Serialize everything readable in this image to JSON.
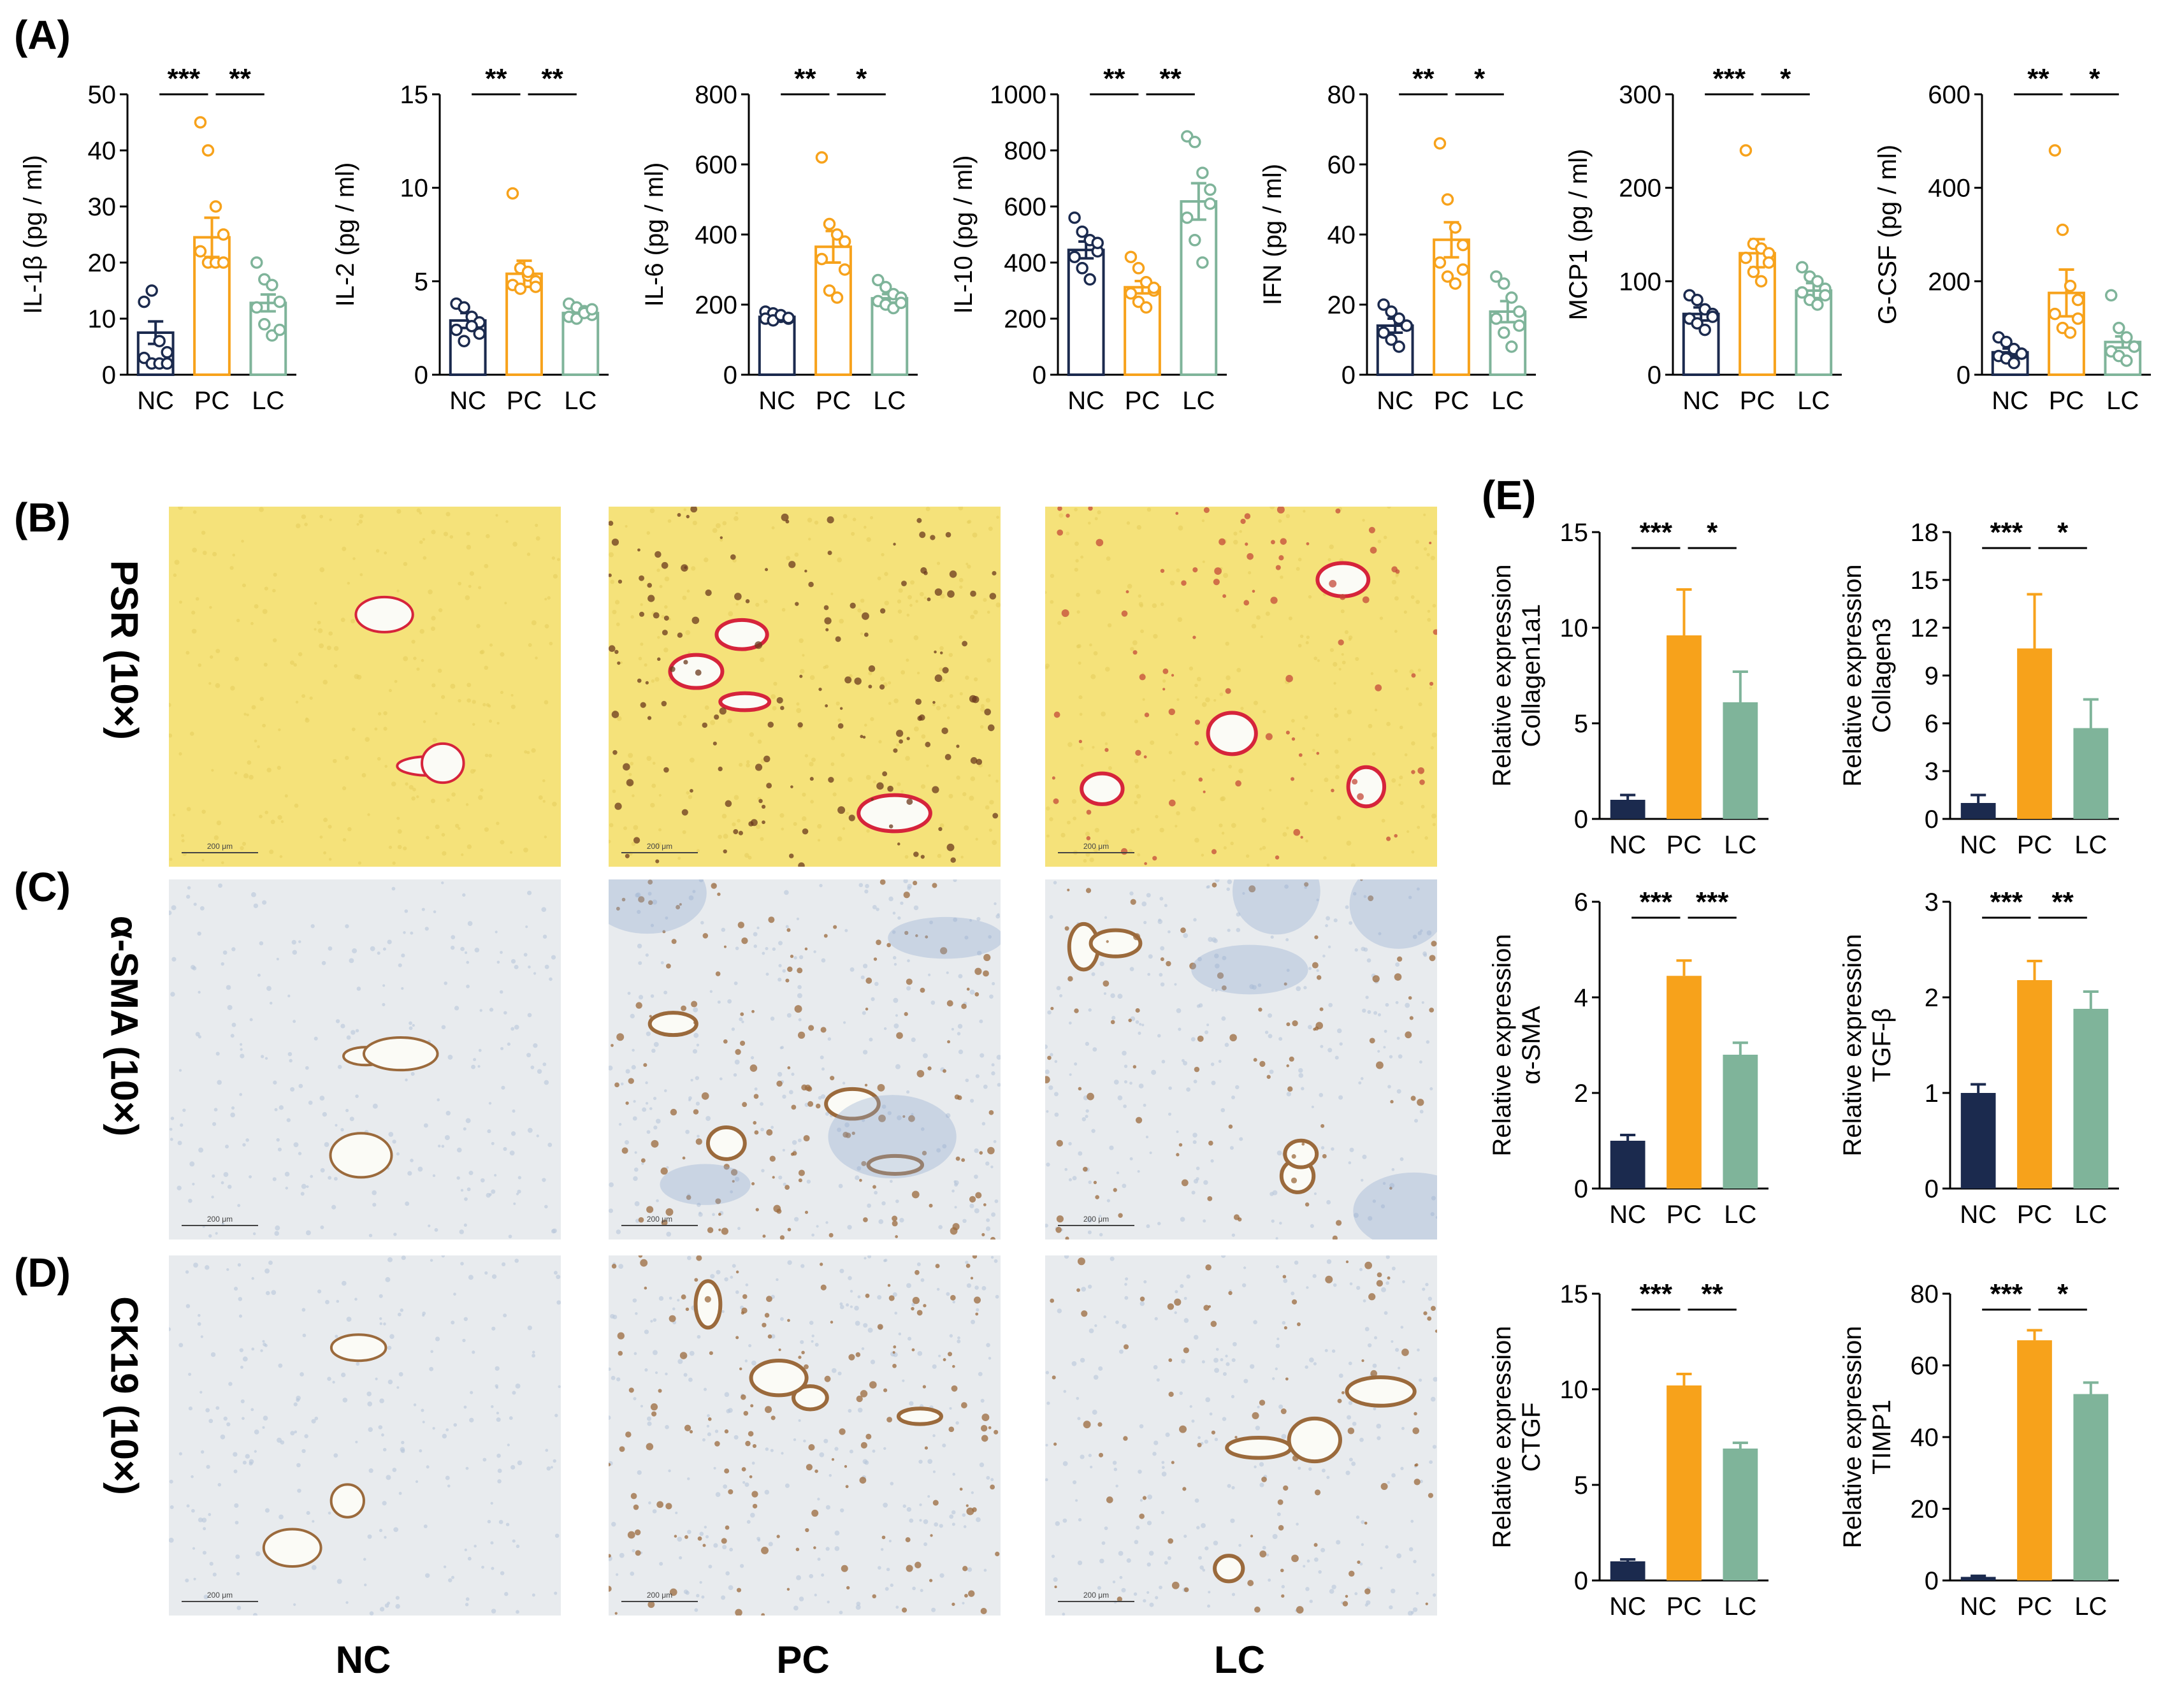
{
  "colors": {
    "NC": "#1b2a4e",
    "PC": "#f7a21b",
    "LC": "#7fb49a",
    "psr_bg": "#f5e27a",
    "ihc_bg": "#e8ebee",
    "stain_brown": "#9b6a3c",
    "psr_red": "#d6243b"
  },
  "panels": {
    "A": "(A)",
    "B": "(B)",
    "C": "(C)",
    "D": "(D)",
    "E": "(E)"
  },
  "stains": {
    "B": "PSR (10×)",
    "C": "α-SMA (10×)",
    "D": "CK19 (10×)"
  },
  "groups": [
    "NC",
    "PC",
    "LC"
  ],
  "micrographs": {
    "scale_bar": "200 μm",
    "columns": [
      "NC",
      "PC",
      "LC"
    ],
    "rows": [
      "PSR (10×)",
      "α-SMA (10×)",
      "CK19 (10×)"
    ]
  },
  "chart_data": [
    {
      "type": "bar",
      "panel": "A",
      "ylabel": "IL-1β (pg / ml)",
      "categories": [
        "NC",
        "PC",
        "LC"
      ],
      "ylim": [
        0,
        50
      ],
      "yticks": [
        0,
        10,
        20,
        30,
        40,
        50
      ],
      "means": [
        7.5,
        24.5,
        12.8
      ],
      "errors": [
        2.0,
        3.5,
        1.5
      ],
      "points": [
        [
          13,
          15,
          6,
          4,
          3,
          2,
          2,
          2
        ],
        [
          45,
          40,
          30,
          25,
          22,
          20,
          20,
          20
        ],
        [
          20,
          17,
          16,
          13,
          12,
          9,
          7,
          8
        ]
      ],
      "significance": [
        {
          "from": 0,
          "to": 1,
          "label": "***"
        },
        {
          "from": 1,
          "to": 2,
          "label": "**"
        }
      ]
    },
    {
      "type": "bar",
      "panel": "A",
      "ylabel": "IL-2 (pg / ml)",
      "categories": [
        "NC",
        "PC",
        "LC"
      ],
      "ylim": [
        0,
        15
      ],
      "yticks": [
        0,
        5,
        10,
        15
      ],
      "means": [
        2.9,
        5.4,
        3.3
      ],
      "errors": [
        0.4,
        0.7,
        0.2
      ],
      "points": [
        [
          3.8,
          3.6,
          3.1,
          2.8,
          2.4,
          1.8,
          2.6,
          2.2
        ],
        [
          9.7,
          5.7,
          5.3,
          5.0,
          4.8,
          4.6,
          5.5,
          4.7
        ],
        [
          3.8,
          3.6,
          3.4,
          3.2,
          3.1,
          3.0,
          3.3,
          3.5
        ]
      ],
      "significance": [
        {
          "from": 0,
          "to": 1,
          "label": "**"
        },
        {
          "from": 1,
          "to": 2,
          "label": "**"
        }
      ]
    },
    {
      "type": "bar",
      "panel": "A",
      "ylabel": "IL-6 (pg / ml)",
      "categories": [
        "NC",
        "PC",
        "LC"
      ],
      "ylim": [
        0,
        800
      ],
      "yticks": [
        0,
        200,
        400,
        600,
        800
      ],
      "means": [
        165,
        365,
        218
      ],
      "errors": [
        8,
        45,
        12
      ],
      "points": [
        [
          180,
          175,
          165,
          160,
          160,
          155,
          170,
          162
        ],
        [
          620,
          430,
          400,
          380,
          330,
          240,
          220,
          300
        ],
        [
          270,
          250,
          230,
          220,
          210,
          200,
          190,
          205
        ]
      ],
      "significance": [
        {
          "from": 0,
          "to": 1,
          "label": "**"
        },
        {
          "from": 1,
          "to": 2,
          "label": "*"
        }
      ]
    },
    {
      "type": "bar",
      "panel": "A",
      "ylabel": "IL-10 (pg / ml)",
      "categories": [
        "NC",
        "PC",
        "LC"
      ],
      "ylim": [
        0,
        1000
      ],
      "yticks": [
        0,
        200,
        400,
        600,
        800,
        1000
      ],
      "means": [
        445,
        312,
        618
      ],
      "errors": [
        30,
        22,
        65
      ],
      "points": [
        [
          560,
          510,
          480,
          440,
          420,
          380,
          340,
          470
        ],
        [
          420,
          380,
          330,
          300,
          290,
          260,
          240,
          310
        ],
        [
          850,
          830,
          720,
          660,
          560,
          480,
          400,
          610
        ]
      ],
      "significance": [
        {
          "from": 0,
          "to": 1,
          "label": "**"
        },
        {
          "from": 1,
          "to": 2,
          "label": "**"
        }
      ]
    },
    {
      "type": "bar",
      "panel": "A",
      "ylabel": "IFN (pg / ml)",
      "categories": [
        "NC",
        "PC",
        "LC"
      ],
      "ylim": [
        0,
        80
      ],
      "yticks": [
        0,
        20,
        40,
        60,
        80
      ],
      "means": [
        14,
        38.5,
        18
      ],
      "errors": [
        2,
        5,
        3
      ],
      "points": [
        [
          20,
          18,
          16,
          14,
          12,
          10,
          8,
          14
        ],
        [
          66,
          50,
          42,
          37,
          32,
          28,
          26,
          30
        ],
        [
          28,
          26,
          22,
          18,
          16,
          12,
          8,
          14
        ]
      ],
      "significance": [
        {
          "from": 0,
          "to": 1,
          "label": "**"
        },
        {
          "from": 1,
          "to": 2,
          "label": "*"
        }
      ]
    },
    {
      "type": "bar",
      "panel": "A",
      "ylabel": "MCP1 (pg / ml)",
      "categories": [
        "NC",
        "PC",
        "LC"
      ],
      "ylim": [
        0,
        300
      ],
      "yticks": [
        0,
        100,
        200,
        300
      ],
      "means": [
        65,
        130,
        90
      ],
      "errors": [
        7,
        15,
        8
      ],
      "points": [
        [
          85,
          80,
          70,
          65,
          60,
          55,
          48,
          62
        ],
        [
          240,
          140,
          135,
          130,
          125,
          110,
          100,
          120
        ],
        [
          115,
          105,
          100,
          92,
          88,
          80,
          75,
          85
        ]
      ],
      "significance": [
        {
          "from": 0,
          "to": 1,
          "label": "***"
        },
        {
          "from": 1,
          "to": 2,
          "label": "*"
        }
      ]
    },
    {
      "type": "bar",
      "panel": "A",
      "ylabel": "G-CSF (pg / ml)",
      "categories": [
        "NC",
        "PC",
        "LC"
      ],
      "ylim": [
        0,
        600
      ],
      "yticks": [
        0,
        200,
        400,
        600
      ],
      "means": [
        48,
        175,
        70
      ],
      "errors": [
        8,
        50,
        12
      ],
      "points": [
        [
          80,
          70,
          55,
          45,
          40,
          35,
          25,
          45
        ],
        [
          480,
          310,
          190,
          160,
          130,
          100,
          90,
          120
        ],
        [
          170,
          100,
          80,
          60,
          50,
          40,
          30,
          60
        ]
      ],
      "significance": [
        {
          "from": 0,
          "to": 1,
          "label": "**"
        },
        {
          "from": 1,
          "to": 2,
          "label": "*"
        }
      ]
    },
    {
      "type": "bar",
      "panel": "E",
      "ylabel": [
        "Relative expression",
        "Collagen1a1"
      ],
      "categories": [
        "NC",
        "PC",
        "LC"
      ],
      "ylim": [
        0,
        15
      ],
      "yticks": [
        0,
        5,
        10,
        15
      ],
      "means": [
        1.0,
        9.6,
        6.1
      ],
      "errors": [
        0.25,
        2.4,
        1.6
      ],
      "significance": [
        {
          "from": 0,
          "to": 1,
          "label": "***"
        },
        {
          "from": 1,
          "to": 2,
          "label": "*"
        }
      ]
    },
    {
      "type": "bar",
      "panel": "E",
      "ylabel": [
        "Relative expression",
        "Collagen3"
      ],
      "categories": [
        "NC",
        "PC",
        "LC"
      ],
      "ylim": [
        0,
        18
      ],
      "yticks": [
        0,
        3,
        6,
        9,
        12,
        15,
        18
      ],
      "means": [
        1.0,
        10.7,
        5.7
      ],
      "errors": [
        0.5,
        3.4,
        1.8
      ],
      "significance": [
        {
          "from": 0,
          "to": 1,
          "label": "***"
        },
        {
          "from": 1,
          "to": 2,
          "label": "*"
        }
      ]
    },
    {
      "type": "bar",
      "panel": "E",
      "ylabel": [
        "Relative expression",
        "α-SMA"
      ],
      "categories": [
        "NC",
        "PC",
        "LC"
      ],
      "ylim": [
        0,
        6
      ],
      "yticks": [
        0,
        2,
        4,
        6
      ],
      "means": [
        1.0,
        4.45,
        2.8
      ],
      "errors": [
        0.12,
        0.32,
        0.25
      ],
      "significance": [
        {
          "from": 0,
          "to": 1,
          "label": "***"
        },
        {
          "from": 1,
          "to": 2,
          "label": "***"
        }
      ]
    },
    {
      "type": "bar",
      "panel": "E",
      "ylabel": [
        "Relative expression",
        "TGF-β"
      ],
      "categories": [
        "NC",
        "PC",
        "LC"
      ],
      "ylim": [
        0,
        3
      ],
      "yticks": [
        0,
        1,
        2,
        3
      ],
      "means": [
        1.0,
        2.18,
        1.88
      ],
      "errors": [
        0.09,
        0.2,
        0.18
      ],
      "significance": [
        {
          "from": 0,
          "to": 1,
          "label": "***"
        },
        {
          "from": 1,
          "to": 2,
          "label": "**"
        }
      ]
    },
    {
      "type": "bar",
      "panel": "E",
      "ylabel": [
        "Relative expression",
        "CTGF"
      ],
      "categories": [
        "NC",
        "PC",
        "LC"
      ],
      "ylim": [
        0,
        15
      ],
      "yticks": [
        0,
        5,
        10,
        15
      ],
      "means": [
        1.0,
        10.2,
        6.9
      ],
      "errors": [
        0.1,
        0.6,
        0.3
      ],
      "significance": [
        {
          "from": 0,
          "to": 1,
          "label": "***"
        },
        {
          "from": 1,
          "to": 2,
          "label": "**"
        }
      ]
    },
    {
      "type": "bar",
      "panel": "E",
      "ylabel": [
        "Relative expression",
        "TIMP1"
      ],
      "categories": [
        "NC",
        "PC",
        "LC"
      ],
      "ylim": [
        0,
        80
      ],
      "yticks": [
        0,
        20,
        40,
        60,
        80
      ],
      "means": [
        1.0,
        67,
        52
      ],
      "errors": [
        0.3,
        2.8,
        3.2
      ],
      "significance": [
        {
          "from": 0,
          "to": 1,
          "label": "***"
        },
        {
          "from": 1,
          "to": 2,
          "label": "*"
        }
      ]
    }
  ]
}
